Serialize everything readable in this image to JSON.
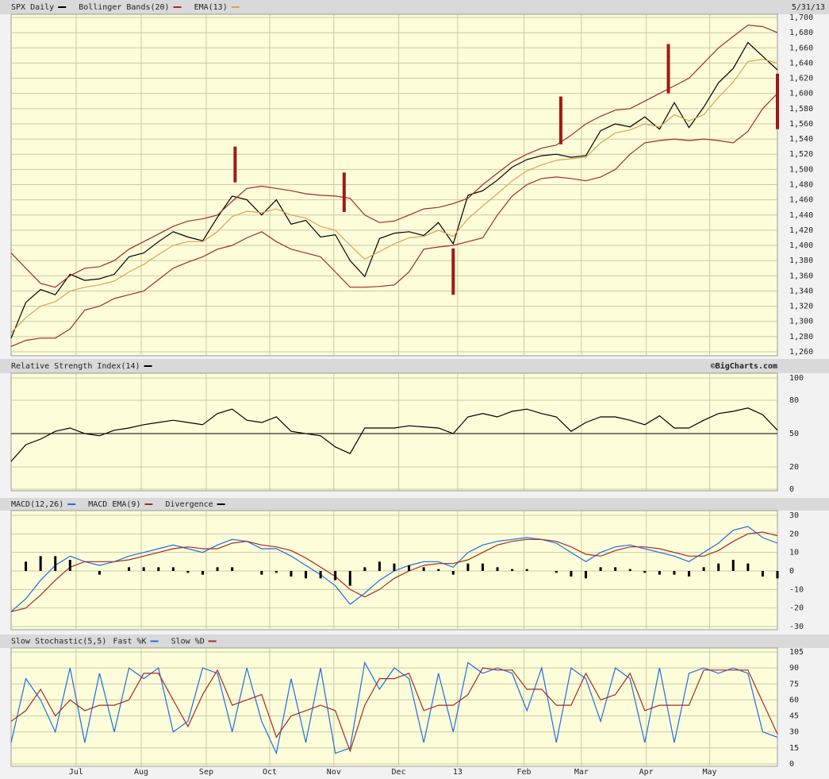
{
  "header": {
    "date": "5/31/13",
    "source": "©BigCharts.com"
  },
  "chart_data": [
    {
      "type": "line",
      "ylim": [
        1260,
        1700
      ],
      "yticks": [
        {
          "value": 1260,
          "label": "1,260"
        },
        {
          "value": 1280,
          "label": "1,280"
        },
        {
          "value": 1300,
          "label": "1,300"
        },
        {
          "value": 1320,
          "label": "1,320"
        },
        {
          "value": 1340,
          "label": "1,340"
        },
        {
          "value": 1360,
          "label": "1,360"
        },
        {
          "value": 1380,
          "label": "1,380"
        },
        {
          "value": 1400,
          "label": "1,400"
        },
        {
          "value": 1420,
          "label": "1,420"
        },
        {
          "value": 1440,
          "label": "1,440"
        },
        {
          "value": 1460,
          "label": "1,460"
        },
        {
          "value": 1480,
          "label": "1,480"
        },
        {
          "value": 1500,
          "label": "1,500"
        },
        {
          "value": 1520,
          "label": "1,520"
        },
        {
          "value": 1540,
          "label": "1,540"
        },
        {
          "value": 1560,
          "label": "1,560"
        },
        {
          "value": 1580,
          "label": "1,580"
        },
        {
          "value": 1600,
          "label": "1,600"
        },
        {
          "value": 1620,
          "label": "1,620"
        },
        {
          "value": 1640,
          "label": "1,640"
        },
        {
          "value": 1660,
          "label": "1,660"
        },
        {
          "value": 1680,
          "label": "1,680"
        },
        {
          "value": 1700,
          "label": "1,700"
        }
      ],
      "series": [
        {
          "name": "SPX Daily",
          "color": "#000000",
          "values": [
            1278,
            1325,
            1342,
            1335,
            1362,
            1354,
            1356,
            1362,
            1385,
            1390,
            1405,
            1418,
            1411,
            1406,
            1437,
            1465,
            1460,
            1440,
            1460,
            1428,
            1433,
            1411,
            1414,
            1380,
            1359,
            1409,
            1416,
            1418,
            1413,
            1430,
            1402,
            1466,
            1472,
            1486,
            1503,
            1513,
            1518,
            1520,
            1516,
            1518,
            1551,
            1560,
            1556,
            1569,
            1553,
            1588,
            1555,
            1582,
            1614,
            1633,
            1667,
            1649,
            1631
          ]
        },
        {
          "name": "Bollinger Bands(20)",
          "color": "#a52a2a",
          "upper": [
            1390,
            1370,
            1350,
            1345,
            1360,
            1370,
            1372,
            1380,
            1395,
            1405,
            1415,
            1425,
            1432,
            1435,
            1440,
            1458,
            1475,
            1478,
            1475,
            1472,
            1468,
            1466,
            1465,
            1462,
            1440,
            1430,
            1432,
            1440,
            1448,
            1450,
            1455,
            1462,
            1480,
            1495,
            1510,
            1520,
            1528,
            1532,
            1545,
            1560,
            1570,
            1578,
            1580,
            1590,
            1600,
            1610,
            1620,
            1640,
            1660,
            1675,
            1690,
            1688,
            1680
          ],
          "lower": [
            1267,
            1275,
            1278,
            1278,
            1290,
            1315,
            1320,
            1330,
            1335,
            1340,
            1355,
            1370,
            1378,
            1385,
            1395,
            1400,
            1410,
            1418,
            1405,
            1395,
            1390,
            1385,
            1365,
            1345,
            1345,
            1346,
            1348,
            1365,
            1395,
            1398,
            1400,
            1405,
            1410,
            1440,
            1465,
            1480,
            1488,
            1490,
            1488,
            1485,
            1490,
            1500,
            1520,
            1535,
            1538,
            1540,
            1538,
            1540,
            1538,
            1535,
            1550,
            1580,
            1600
          ]
        },
        {
          "name": "EMA(13)",
          "color": "#e0a050",
          "values": [
            1285,
            1305,
            1320,
            1326,
            1340,
            1345,
            1348,
            1353,
            1365,
            1375,
            1388,
            1400,
            1405,
            1405,
            1418,
            1438,
            1445,
            1443,
            1448,
            1440,
            1436,
            1425,
            1420,
            1400,
            1382,
            1392,
            1402,
            1410,
            1412,
            1420,
            1412,
            1435,
            1452,
            1468,
            1485,
            1498,
            1506,
            1512,
            1514,
            1516,
            1535,
            1548,
            1552,
            1560,
            1556,
            1572,
            1564,
            1572,
            1595,
            1615,
            1642,
            1645,
            1640
          ]
        }
      ],
      "markers": {
        "color": "#a01818",
        "x": [
          15.2,
          22.6,
          30,
          37.3,
          44.6,
          52
        ],
        "low": [
          1483,
          1444,
          1335,
          1533,
          1600,
          1553
        ],
        "high": [
          1530,
          1496,
          1396,
          1596,
          1665,
          1626
        ]
      },
      "grid": true
    },
    {
      "type": "line",
      "ylim": [
        0,
        100
      ],
      "yticks": [
        0,
        20,
        50,
        80,
        100
      ],
      "hline": 50,
      "series": [
        {
          "name": "Relative Strength Index(14)",
          "color": "#000000",
          "values": [
            25,
            40,
            45,
            52,
            55,
            50,
            48,
            53,
            55,
            58,
            60,
            62,
            60,
            58,
            68,
            72,
            62,
            60,
            65,
            52,
            50,
            48,
            38,
            32,
            55,
            55,
            55,
            57,
            56,
            55,
            50,
            65,
            68,
            65,
            70,
            72,
            68,
            65,
            52,
            60,
            65,
            65,
            62,
            58,
            66,
            55,
            55,
            62,
            68,
            70,
            73,
            67,
            53
          ]
        }
      ],
      "grid": true
    },
    {
      "type": "line",
      "ylim": [
        -30,
        30
      ],
      "yticks": [
        -30,
        -20,
        -10,
        0,
        10,
        20,
        30
      ],
      "series": [
        {
          "name": "MACD(12,26)",
          "color": "#1a6fe0",
          "values": [
            -22,
            -15,
            -5,
            3,
            8,
            5,
            3,
            5,
            8,
            10,
            12,
            14,
            12,
            10,
            14,
            17,
            16,
            12,
            12,
            8,
            3,
            -2,
            -8,
            -18,
            -12,
            -5,
            0,
            3,
            5,
            5,
            2,
            10,
            14,
            16,
            17,
            18,
            17,
            15,
            10,
            5,
            10,
            13,
            14,
            12,
            10,
            8,
            5,
            10,
            15,
            22,
            24,
            18,
            15
          ]
        },
        {
          "name": "MACD EMA(9)",
          "color": "#a52a2a",
          "values": [
            -22,
            -20,
            -13,
            -5,
            2,
            5,
            5,
            5,
            6,
            8,
            10,
            12,
            13,
            12,
            12,
            15,
            16,
            14,
            13,
            11,
            7,
            2,
            -3,
            -10,
            -14,
            -10,
            -4,
            0,
            3,
            4,
            4,
            6,
            10,
            14,
            16,
            17,
            17,
            16,
            13,
            9,
            8,
            11,
            13,
            13,
            12,
            10,
            8,
            8,
            11,
            16,
            20,
            21,
            19
          ]
        },
        {
          "name": "Divergence",
          "color": "#000000",
          "style": "histogram",
          "values": [
            0,
            5,
            8,
            8,
            6,
            0,
            -2,
            0,
            2,
            2,
            2,
            2,
            -1,
            -2,
            2,
            2,
            0,
            -2,
            -1,
            -3,
            -4,
            -4,
            -5,
            -8,
            2,
            5,
            4,
            3,
            2,
            1,
            -2,
            4,
            4,
            2,
            1,
            1,
            0,
            -1,
            -3,
            -4,
            2,
            2,
            1,
            -1,
            -2,
            -2,
            -3,
            2,
            4,
            6,
            4,
            -3,
            -4
          ]
        }
      ],
      "grid": true
    },
    {
      "type": "line",
      "title": "Slow Stochastic(5,5)",
      "ylim": [
        0,
        105
      ],
      "yticks": [
        0,
        15,
        30,
        45,
        60,
        75,
        90,
        105
      ],
      "x": [
        0,
        1,
        2,
        3,
        4,
        5,
        6,
        7,
        8,
        9,
        10,
        11,
        12,
        13,
        14,
        15,
        16,
        17,
        18,
        19,
        20,
        21,
        22,
        23,
        24,
        25,
        26,
        27,
        28,
        29,
        30,
        31,
        32,
        33,
        34,
        35,
        36,
        37,
        38,
        39,
        40,
        41,
        42,
        43,
        44,
        45,
        46,
        47,
        48,
        49,
        50,
        51,
        52
      ],
      "xlim": [
        0,
        52
      ],
      "xticks": [
        {
          "value": 4.41,
          "label": "Jul"
        },
        {
          "value": 8.83,
          "label": "Aug"
        },
        {
          "value": 13.24,
          "label": "Sep"
        },
        {
          "value": 17.55,
          "label": "Oct"
        },
        {
          "value": 21.9,
          "label": "Nov"
        },
        {
          "value": 26.3,
          "label": "Dec"
        },
        {
          "value": 30.3,
          "label": "13"
        },
        {
          "value": 34.8,
          "label": "Feb"
        },
        {
          "value": 38.7,
          "label": "Mar"
        },
        {
          "value": 43.1,
          "label": "Apr"
        },
        {
          "value": 47.4,
          "label": "May"
        }
      ],
      "series": [
        {
          "name": "Fast %K",
          "color": "#1a6fe0",
          "values": [
            20,
            80,
            60,
            30,
            90,
            20,
            85,
            30,
            90,
            80,
            90,
            30,
            40,
            90,
            85,
            30,
            90,
            40,
            10,
            80,
            20,
            90,
            10,
            15,
            95,
            70,
            90,
            80,
            20,
            85,
            30,
            95,
            85,
            90,
            85,
            50,
            90,
            20,
            90,
            80,
            40,
            90,
            80,
            20,
            90,
            20,
            85,
            90,
            85,
            90,
            85,
            30,
            25
          ]
        },
        {
          "name": "Slow %D",
          "color": "#a52a2a",
          "values": [
            40,
            50,
            70,
            45,
            60,
            50,
            55,
            55,
            60,
            85,
            85,
            60,
            35,
            65,
            88,
            55,
            60,
            65,
            25,
            45,
            50,
            55,
            50,
            12,
            55,
            80,
            80,
            85,
            50,
            55,
            55,
            65,
            90,
            88,
            88,
            70,
            70,
            55,
            55,
            85,
            60,
            65,
            85,
            50,
            55,
            55,
            55,
            88,
            88,
            88,
            88,
            58,
            28
          ]
        }
      ],
      "grid": true
    }
  ]
}
